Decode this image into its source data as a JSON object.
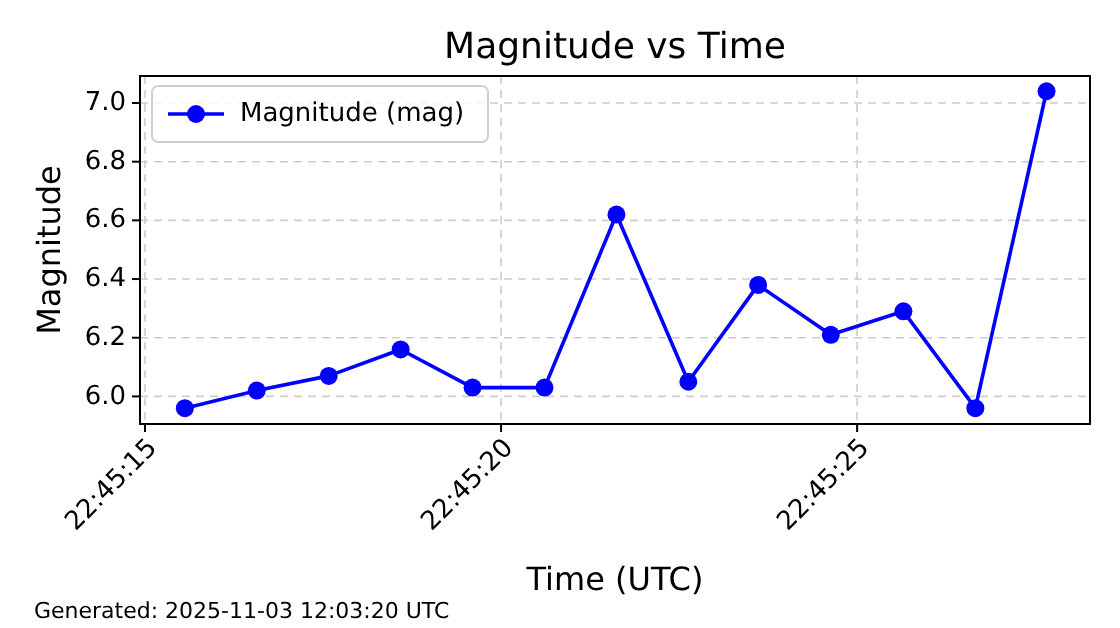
{
  "chart_data": {
    "type": "line",
    "title": "Magnitude vs Time",
    "xlabel": "Time (UTC)",
    "ylabel": "Magnitude",
    "annotations": [
      "Generated: 2025-11-03 12:03:20 UTC"
    ],
    "x": [
      22.7543222,
      22.7546028,
      22.7548833,
      22.7551639,
      22.7554444,
      22.755725,
      22.7560056,
      22.7562861,
      22.7565583,
      22.7568417,
      22.757125,
      22.7574056,
      22.7576833
    ],
    "series": [
      {
        "name": "Magnitude (mag)",
        "color": "#0000ff",
        "values": [
          5.96,
          6.02,
          6.07,
          6.16,
          6.03,
          6.03,
          6.62,
          6.05,
          6.38,
          6.21,
          6.29,
          5.96,
          7.04
        ]
      }
    ],
    "xlim": [
      22.7541472,
      22.7578528
    ],
    "xticks": [
      {
        "value": 22.7541667,
        "label": "22:45:15"
      },
      {
        "value": 22.7555556,
        "label": "22:45:20"
      },
      {
        "value": 22.7569444,
        "label": "22:45:25"
      }
    ],
    "ylim": [
      5.906,
      7.092
    ],
    "yticks": [
      {
        "value": 6,
        "label": "6.0"
      },
      {
        "value": 6.2,
        "label": "6.2"
      },
      {
        "value": 6.4,
        "label": "6.4"
      },
      {
        "value": 6.6,
        "label": "6.6"
      },
      {
        "value": 6.8,
        "label": "6.8"
      },
      {
        "value": 7,
        "label": "7.0"
      }
    ],
    "grid": true,
    "legend": "top left",
    "marker": "circle",
    "line_style": "solid"
  }
}
